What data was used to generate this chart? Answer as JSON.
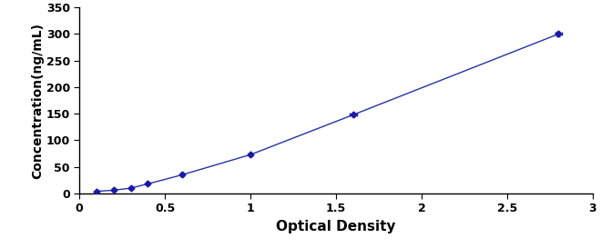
{
  "x": [
    0.1,
    0.2,
    0.3,
    0.4,
    0.6,
    1.0,
    1.6,
    2.8
  ],
  "y": [
    4,
    6,
    10,
    18,
    35,
    73,
    148,
    300
  ],
  "xerr": [
    0.01,
    0.01,
    0.01,
    0.01,
    0.01,
    0.01,
    0.02,
    0.02
  ],
  "yerr": [
    1,
    1,
    1.5,
    1.5,
    2,
    2,
    3,
    4
  ],
  "line_color": "#2233AA",
  "marker_color": "#1a1aaa",
  "xlabel": "Optical Density",
  "ylabel": "Concentration(ng/mL)",
  "xlim": [
    0,
    3.0
  ],
  "ylim": [
    0,
    350
  ],
  "xticks": [
    0,
    0.5,
    1.0,
    1.5,
    2.0,
    2.5,
    3.0
  ],
  "xticklabels": [
    "0",
    "0.5",
    "1",
    "1.5",
    "2",
    "2.5",
    "3"
  ],
  "yticks": [
    0,
    50,
    100,
    150,
    200,
    250,
    300,
    350
  ],
  "xlabel_fontsize": 11,
  "ylabel_fontsize": 10,
  "tick_fontsize": 9,
  "figsize": [
    6.71,
    2.73
  ],
  "dpi": 100
}
